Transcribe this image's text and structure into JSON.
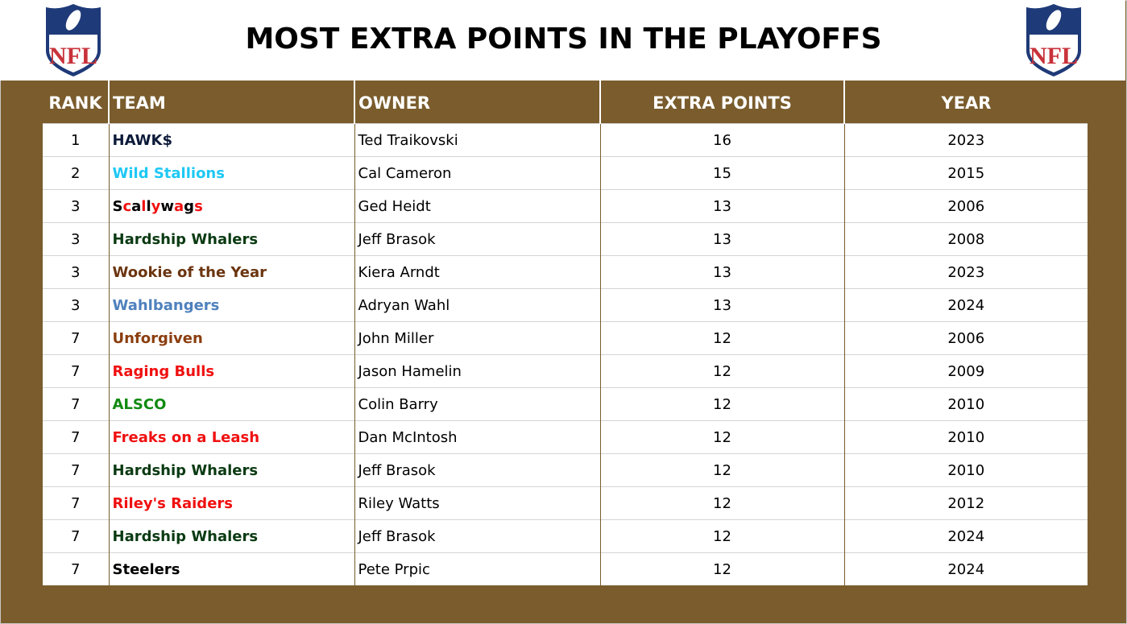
{
  "title": "MOST EXTRA POINTS IN THE PLAYOFFS",
  "logo_text": "NFL",
  "headers": {
    "rank": "RANK",
    "team": "TEAM",
    "owner": "OWNER",
    "points": "EXTRA POINTS",
    "year": "YEAR"
  },
  "rows": [
    {
      "rank": "1",
      "team": "HAWK$",
      "color": "#0d1b3a",
      "owner": "Ted Traikovski",
      "points": "16",
      "year": "2023"
    },
    {
      "rank": "2",
      "team": "Wild Stallions",
      "color": "#1ec8f5",
      "owner": "Cal Cameron",
      "points": "15",
      "year": "2015"
    },
    {
      "rank": "3",
      "team": "Scallywags",
      "color": "multi",
      "owner": "Ged Heidt",
      "points": "13",
      "year": "2006"
    },
    {
      "rank": "3",
      "team": "Hardship Whalers",
      "color": "#0a3a12",
      "owner": "Jeff Brasok",
      "points": "13",
      "year": "2008"
    },
    {
      "rank": "3",
      "team": "Wookie of the Year",
      "color": "#6b3510",
      "owner": "Kiera Arndt",
      "points": "13",
      "year": "2023"
    },
    {
      "rank": "3",
      "team": "Wahlbangers",
      "color": "#4f81bd",
      "owner": "Adryan Wahl",
      "points": "13",
      "year": "2024"
    },
    {
      "rank": "7",
      "team": "Unforgiven",
      "color": "#8b3e0f",
      "owner": "John Miller",
      "points": "12",
      "year": "2006"
    },
    {
      "rank": "7",
      "team": "Raging Bulls",
      "color": "#f01010",
      "owner": "Jason Hamelin",
      "points": "12",
      "year": "2009"
    },
    {
      "rank": "7",
      "team": "ALSCO",
      "color": "#108a10",
      "owner": "Colin Barry",
      "points": "12",
      "year": "2010"
    },
    {
      "rank": "7",
      "team": "Freaks on a Leash",
      "color": "#f01010",
      "owner": "Dan McIntosh",
      "points": "12",
      "year": "2010"
    },
    {
      "rank": "7",
      "team": "Hardship Whalers",
      "color": "#0a3a12",
      "owner": "Jeff Brasok",
      "points": "12",
      "year": "2010"
    },
    {
      "rank": "7",
      "team": "Riley's Raiders",
      "color": "#f01010",
      "owner": "Riley Watts",
      "points": "12",
      "year": "2012"
    },
    {
      "rank": "7",
      "team": "Hardship Whalers",
      "color": "#0a3a12",
      "owner": "Jeff Brasok",
      "points": "12",
      "year": "2024"
    },
    {
      "rank": "7",
      "team": "Steelers",
      "color": "#000000",
      "owner": "Pete Prpic",
      "points": "12",
      "year": "2024"
    }
  ]
}
